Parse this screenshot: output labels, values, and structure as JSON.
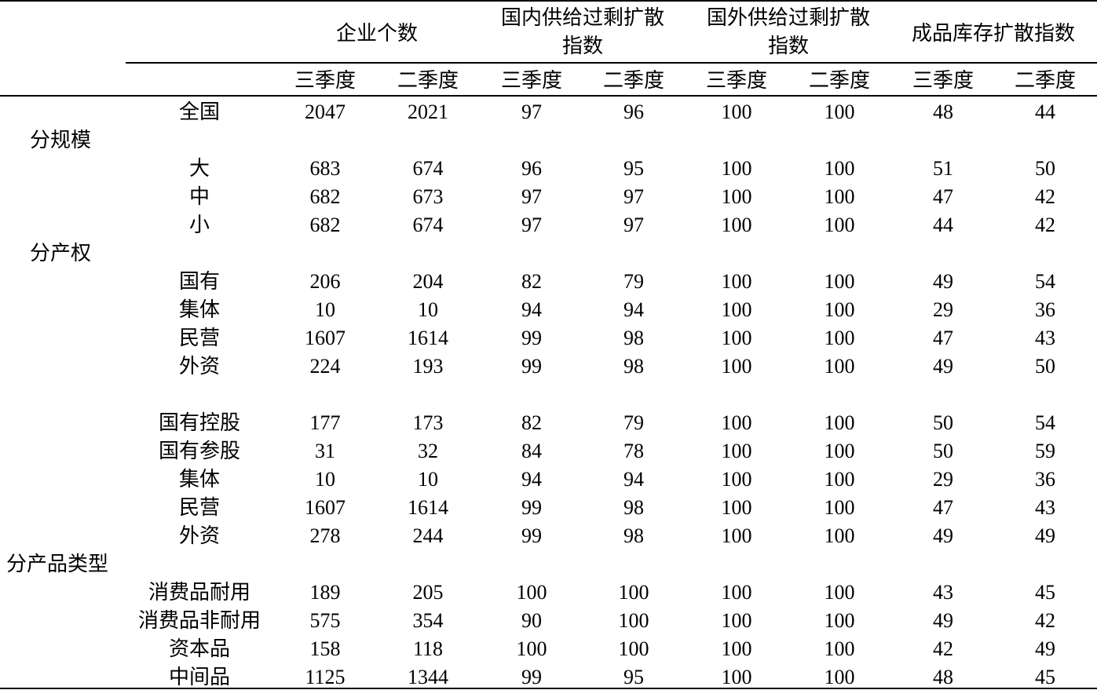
{
  "header": {
    "groups": [
      "企业个数",
      "国内供给过剩扩散指数",
      "国外供给过剩扩散指数",
      "成品库存扩散指数"
    ],
    "group_lines": [
      [
        "企业个数"
      ],
      [
        "国内供给过剩扩散",
        "指数"
      ],
      [
        "国外供给过剩扩散",
        "指数"
      ],
      [
        "成品库存扩散指数"
      ]
    ],
    "subheaders": [
      "三季度",
      "二季度",
      "三季度",
      "二季度",
      "三季度",
      "二季度",
      "三季度",
      "二季度"
    ]
  },
  "rows": [
    {
      "type": "data",
      "label": "全国",
      "values": [
        "2047",
        "2021",
        "97",
        "96",
        "100",
        "100",
        "48",
        "44"
      ]
    },
    {
      "type": "category",
      "label": "分规模"
    },
    {
      "type": "data",
      "label": "大",
      "values": [
        "683",
        "674",
        "96",
        "95",
        "100",
        "100",
        "51",
        "50"
      ]
    },
    {
      "type": "data",
      "label": "中",
      "values": [
        "682",
        "673",
        "97",
        "97",
        "100",
        "100",
        "47",
        "42"
      ]
    },
    {
      "type": "data",
      "label": "小",
      "values": [
        "682",
        "674",
        "97",
        "97",
        "100",
        "100",
        "44",
        "42"
      ]
    },
    {
      "type": "category",
      "label": "分产权"
    },
    {
      "type": "data",
      "label": "国有",
      "values": [
        "206",
        "204",
        "82",
        "79",
        "100",
        "100",
        "49",
        "54"
      ]
    },
    {
      "type": "data",
      "label": "集体",
      "values": [
        "10",
        "10",
        "94",
        "94",
        "100",
        "100",
        "29",
        "36"
      ]
    },
    {
      "type": "data",
      "label": "民营",
      "values": [
        "1607",
        "1614",
        "99",
        "98",
        "100",
        "100",
        "47",
        "43"
      ]
    },
    {
      "type": "data",
      "label": "外资",
      "values": [
        "224",
        "193",
        "99",
        "98",
        "100",
        "100",
        "49",
        "50"
      ]
    },
    {
      "type": "blank"
    },
    {
      "type": "data",
      "label": "国有控股",
      "values": [
        "177",
        "173",
        "82",
        "79",
        "100",
        "100",
        "50",
        "54"
      ]
    },
    {
      "type": "data",
      "label": "国有参股",
      "values": [
        "31",
        "32",
        "84",
        "78",
        "100",
        "100",
        "50",
        "59"
      ]
    },
    {
      "type": "data",
      "label": "集体",
      "values": [
        "10",
        "10",
        "94",
        "94",
        "100",
        "100",
        "29",
        "36"
      ]
    },
    {
      "type": "data",
      "label": "民营",
      "values": [
        "1607",
        "1614",
        "99",
        "98",
        "100",
        "100",
        "47",
        "43"
      ]
    },
    {
      "type": "data",
      "label": "外资",
      "values": [
        "278",
        "244",
        "99",
        "98",
        "100",
        "100",
        "49",
        "49"
      ]
    },
    {
      "type": "category",
      "label": "分产品类型"
    },
    {
      "type": "data",
      "label": "消费品耐用",
      "values": [
        "189",
        "205",
        "100",
        "100",
        "100",
        "100",
        "43",
        "45"
      ]
    },
    {
      "type": "data",
      "label": "消费品非耐用",
      "values": [
        "575",
        "354",
        "90",
        "100",
        "100",
        "100",
        "49",
        "42"
      ]
    },
    {
      "type": "data",
      "label": "资本品",
      "values": [
        "158",
        "118",
        "100",
        "100",
        "100",
        "100",
        "42",
        "49"
      ]
    },
    {
      "type": "data",
      "label": "中间品",
      "values": [
        "1125",
        "1344",
        "99",
        "95",
        "100",
        "100",
        "48",
        "45"
      ]
    }
  ]
}
